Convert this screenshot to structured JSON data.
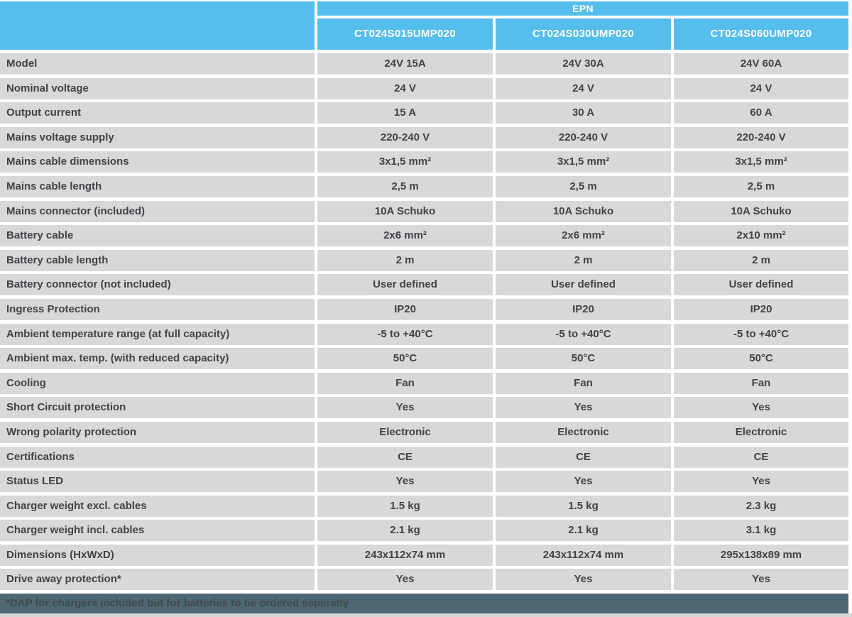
{
  "table": {
    "brand_header": "EPN",
    "columns": [
      "CT024S015UMP020",
      "CT024S030UMP020",
      "CT024S060UMP020"
    ],
    "rows": [
      {
        "label": "Model",
        "values": [
          "24V 15A",
          "24V 30A",
          "24V 60A"
        ]
      },
      {
        "label": "Nominal voltage",
        "values": [
          "24 V",
          "24 V",
          "24 V"
        ]
      },
      {
        "label": "Output current",
        "values": [
          "15 A",
          "30 A",
          "60 A"
        ]
      },
      {
        "label": "Mains voltage supply",
        "values": [
          "220-240 V",
          "220-240 V",
          "220-240 V"
        ]
      },
      {
        "label": "Mains cable dimensions",
        "values": [
          "3x1,5 mm²",
          "3x1,5 mm²",
          "3x1,5 mm²"
        ]
      },
      {
        "label": "Mains cable length",
        "values": [
          "2,5 m",
          "2,5 m",
          "2,5 m"
        ]
      },
      {
        "label": "Mains connector (included)",
        "values": [
          "10A Schuko",
          "10A Schuko",
          "10A Schuko"
        ]
      },
      {
        "label": "Battery cable",
        "values": [
          "2x6 mm²",
          "2x6 mm²",
          "2x10 mm²"
        ]
      },
      {
        "label": "Battery cable length",
        "values": [
          "2 m",
          "2 m",
          "2 m"
        ]
      },
      {
        "label": "Battery connector (not included)",
        "values": [
          "User defined",
          "User defined",
          "User defined"
        ]
      },
      {
        "label": "Ingress Protection",
        "values": [
          "IP20",
          "IP20",
          "IP20"
        ]
      },
      {
        "label": "Ambient temperature range (at full capacity)",
        "values": [
          "-5 to +40°C",
          "-5 to +40°C",
          "-5 to +40°C"
        ]
      },
      {
        "label": "Ambient max. temp. (with reduced capacity)",
        "values": [
          "50°C",
          "50°C",
          "50°C"
        ]
      },
      {
        "label": "Cooling",
        "values": [
          "Fan",
          "Fan",
          "Fan"
        ]
      },
      {
        "label": "Short Circuit protection",
        "values": [
          "Yes",
          "Yes",
          "Yes"
        ]
      },
      {
        "label": "Wrong polarity protection",
        "values": [
          "Electronic",
          "Electronic",
          "Electronic"
        ]
      },
      {
        "label": "Certifications",
        "values": [
          "CE",
          "CE",
          "CE"
        ]
      },
      {
        "label": "Status LED",
        "values": [
          "Yes",
          "Yes",
          "Yes"
        ]
      },
      {
        "label": "Charger weight excl. cables",
        "values": [
          "1.5 kg",
          "1.5 kg",
          "2.3 kg"
        ]
      },
      {
        "label": "Charger weight incl. cables",
        "values": [
          "2.1 kg",
          "2.1 kg",
          "3.1 kg"
        ]
      },
      {
        "label": "Dimensions (HxWxD)",
        "values": [
          "243x112x74 mm",
          "243x112x74 mm",
          "295x138x89 mm"
        ]
      },
      {
        "label": "Drive away protection*",
        "values": [
          "Yes",
          "Yes",
          "Yes"
        ]
      }
    ],
    "footnote": "*DAP for chargers included but for batteries to be ordered seperatly",
    "colors": {
      "header_blue": "#55BEEC",
      "header_text": "#FFFFFF",
      "row_grey": "#D8D8D8",
      "text_dark": "#3F4347",
      "footnote_bg": "#4D6773",
      "footnote_text": "#42494B",
      "bottom_strip": "#D5D5D5"
    }
  }
}
